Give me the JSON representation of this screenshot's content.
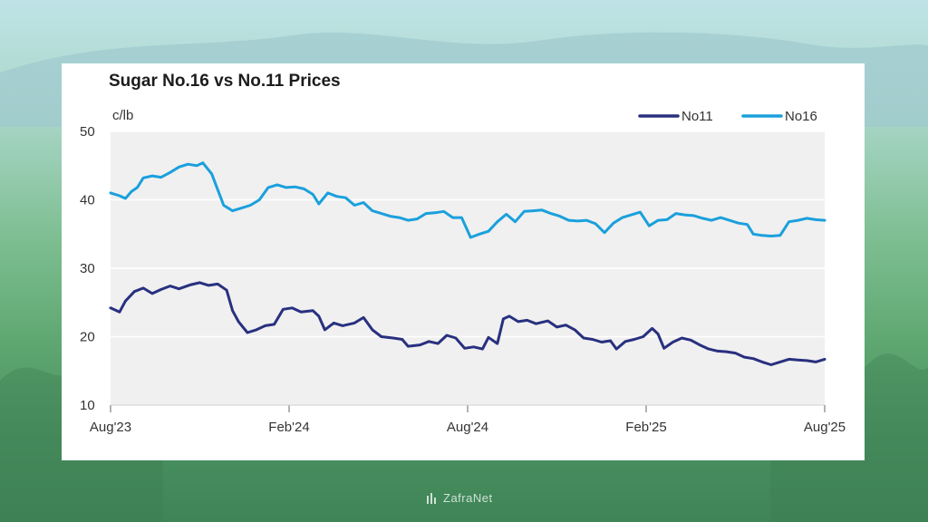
{
  "background": {
    "sky": "#bfe3e6",
    "field": "#4a9261"
  },
  "watermark": {
    "text": "ZafraNet",
    "icon": "zafranet-logo-icon"
  },
  "chart_data": {
    "type": "line",
    "title": "Sugar No.16 vs No.11 Prices",
    "ylabel": "c/lb",
    "xlabel": "",
    "ylim": [
      10,
      50
    ],
    "yticks": [
      10,
      20,
      30,
      40,
      50
    ],
    "xlim": [
      0,
      24
    ],
    "xticks": [
      {
        "x": 0,
        "label": "Aug'23"
      },
      {
        "x": 6,
        "label": "Feb'24"
      },
      {
        "x": 12,
        "label": "Aug'24"
      },
      {
        "x": 18,
        "label": "Feb'25"
      },
      {
        "x": 24,
        "label": "Aug'25"
      }
    ],
    "grid": true,
    "legend_position": "top-right",
    "series": [
      {
        "name": "No11",
        "color": "#28307f",
        "points": [
          [
            0,
            24.2
          ],
          [
            0.3,
            23.6
          ],
          [
            0.5,
            25.2
          ],
          [
            0.8,
            26.6
          ],
          [
            1.1,
            27.1
          ],
          [
            1.4,
            26.3
          ],
          [
            1.7,
            26.9
          ],
          [
            2.0,
            27.4
          ],
          [
            2.3,
            27.0
          ],
          [
            2.7,
            27.6
          ],
          [
            3.0,
            27.9
          ],
          [
            3.3,
            27.5
          ],
          [
            3.6,
            27.7
          ],
          [
            3.9,
            26.8
          ],
          [
            4.1,
            23.8
          ],
          [
            4.3,
            22.2
          ],
          [
            4.6,
            20.6
          ],
          [
            4.9,
            21.0
          ],
          [
            5.2,
            21.6
          ],
          [
            5.5,
            21.8
          ],
          [
            5.8,
            24.0
          ],
          [
            6.1,
            24.2
          ],
          [
            6.4,
            23.6
          ],
          [
            6.8,
            23.8
          ],
          [
            7.0,
            23.0
          ],
          [
            7.2,
            21.0
          ],
          [
            7.5,
            22.0
          ],
          [
            7.8,
            21.6
          ],
          [
            8.2,
            22.0
          ],
          [
            8.5,
            22.8
          ],
          [
            8.8,
            21.0
          ],
          [
            9.1,
            20.0
          ],
          [
            9.5,
            19.8
          ],
          [
            9.8,
            19.6
          ],
          [
            10.0,
            18.6
          ],
          [
            10.4,
            18.8
          ],
          [
            10.7,
            19.3
          ],
          [
            11.0,
            19.0
          ],
          [
            11.3,
            20.2
          ],
          [
            11.6,
            19.8
          ],
          [
            11.9,
            18.3
          ],
          [
            12.2,
            18.5
          ],
          [
            12.5,
            18.2
          ],
          [
            12.7,
            19.9
          ],
          [
            13.0,
            19.0
          ],
          [
            13.2,
            22.6
          ],
          [
            13.4,
            23.0
          ],
          [
            13.7,
            22.2
          ],
          [
            14.0,
            22.4
          ],
          [
            14.3,
            21.9
          ],
          [
            14.7,
            22.3
          ],
          [
            15.0,
            21.4
          ],
          [
            15.3,
            21.7
          ],
          [
            15.6,
            21.0
          ],
          [
            15.9,
            19.8
          ],
          [
            16.2,
            19.6
          ],
          [
            16.5,
            19.2
          ],
          [
            16.8,
            19.4
          ],
          [
            17.0,
            18.2
          ],
          [
            17.3,
            19.3
          ],
          [
            17.6,
            19.6
          ],
          [
            17.9,
            20.0
          ],
          [
            18.2,
            21.2
          ],
          [
            18.4,
            20.4
          ],
          [
            18.6,
            18.3
          ],
          [
            18.9,
            19.2
          ],
          [
            19.2,
            19.8
          ],
          [
            19.5,
            19.5
          ],
          [
            19.8,
            18.8
          ],
          [
            20.1,
            18.2
          ],
          [
            20.4,
            17.9
          ],
          [
            20.7,
            17.8
          ],
          [
            21.0,
            17.6
          ],
          [
            21.3,
            17.0
          ],
          [
            21.6,
            16.8
          ],
          [
            21.9,
            16.3
          ],
          [
            22.2,
            15.9
          ],
          [
            22.5,
            16.3
          ],
          [
            22.8,
            16.7
          ],
          [
            23.1,
            16.6
          ],
          [
            23.4,
            16.5
          ],
          [
            23.7,
            16.3
          ],
          [
            24.0,
            16.7
          ]
        ]
      },
      {
        "name": "No16",
        "color": "#1aa0dc",
        "points": [
          [
            0,
            41.0
          ],
          [
            0.3,
            40.6
          ],
          [
            0.5,
            40.2
          ],
          [
            0.7,
            41.2
          ],
          [
            0.9,
            41.8
          ],
          [
            1.1,
            43.2
          ],
          [
            1.4,
            43.5
          ],
          [
            1.7,
            43.3
          ],
          [
            2.0,
            44.0
          ],
          [
            2.3,
            44.8
          ],
          [
            2.6,
            45.2
          ],
          [
            2.9,
            45.0
          ],
          [
            3.1,
            45.4
          ],
          [
            3.4,
            43.8
          ],
          [
            3.6,
            41.5
          ],
          [
            3.8,
            39.2
          ],
          [
            4.1,
            38.4
          ],
          [
            4.4,
            38.8
          ],
          [
            4.7,
            39.2
          ],
          [
            5.0,
            40.0
          ],
          [
            5.3,
            41.8
          ],
          [
            5.6,
            42.2
          ],
          [
            5.9,
            41.8
          ],
          [
            6.2,
            41.9
          ],
          [
            6.5,
            41.6
          ],
          [
            6.8,
            40.8
          ],
          [
            7.0,
            39.4
          ],
          [
            7.3,
            41.0
          ],
          [
            7.6,
            40.5
          ],
          [
            7.9,
            40.3
          ],
          [
            8.2,
            39.2
          ],
          [
            8.5,
            39.6
          ],
          [
            8.8,
            38.4
          ],
          [
            9.1,
            38.0
          ],
          [
            9.4,
            37.6
          ],
          [
            9.7,
            37.4
          ],
          [
            10.0,
            37.0
          ],
          [
            10.3,
            37.2
          ],
          [
            10.6,
            38.0
          ],
          [
            10.9,
            38.1
          ],
          [
            11.2,
            38.3
          ],
          [
            11.5,
            37.4
          ],
          [
            11.8,
            37.4
          ],
          [
            12.1,
            34.5
          ],
          [
            12.4,
            35.0
          ],
          [
            12.7,
            35.4
          ],
          [
            13.0,
            36.8
          ],
          [
            13.3,
            37.9
          ],
          [
            13.6,
            36.8
          ],
          [
            13.9,
            38.3
          ],
          [
            14.2,
            38.4
          ],
          [
            14.5,
            38.5
          ],
          [
            14.8,
            38.0
          ],
          [
            15.1,
            37.6
          ],
          [
            15.4,
            37.0
          ],
          [
            15.7,
            36.9
          ],
          [
            16.0,
            37.0
          ],
          [
            16.3,
            36.5
          ],
          [
            16.6,
            35.2
          ],
          [
            16.9,
            36.6
          ],
          [
            17.2,
            37.4
          ],
          [
            17.5,
            37.8
          ],
          [
            17.8,
            38.2
          ],
          [
            18.1,
            36.2
          ],
          [
            18.4,
            37.0
          ],
          [
            18.7,
            37.1
          ],
          [
            19.0,
            38.0
          ],
          [
            19.3,
            37.8
          ],
          [
            19.6,
            37.7
          ],
          [
            19.9,
            37.3
          ],
          [
            20.2,
            37.0
          ],
          [
            20.5,
            37.4
          ],
          [
            20.8,
            37.0
          ],
          [
            21.1,
            36.6
          ],
          [
            21.4,
            36.4
          ],
          [
            21.6,
            35.0
          ],
          [
            21.9,
            34.8
          ],
          [
            22.2,
            34.7
          ],
          [
            22.5,
            34.8
          ],
          [
            22.8,
            36.8
          ],
          [
            23.1,
            37.0
          ],
          [
            23.4,
            37.3
          ],
          [
            23.7,
            37.1
          ],
          [
            24.0,
            37.0
          ]
        ]
      }
    ]
  }
}
